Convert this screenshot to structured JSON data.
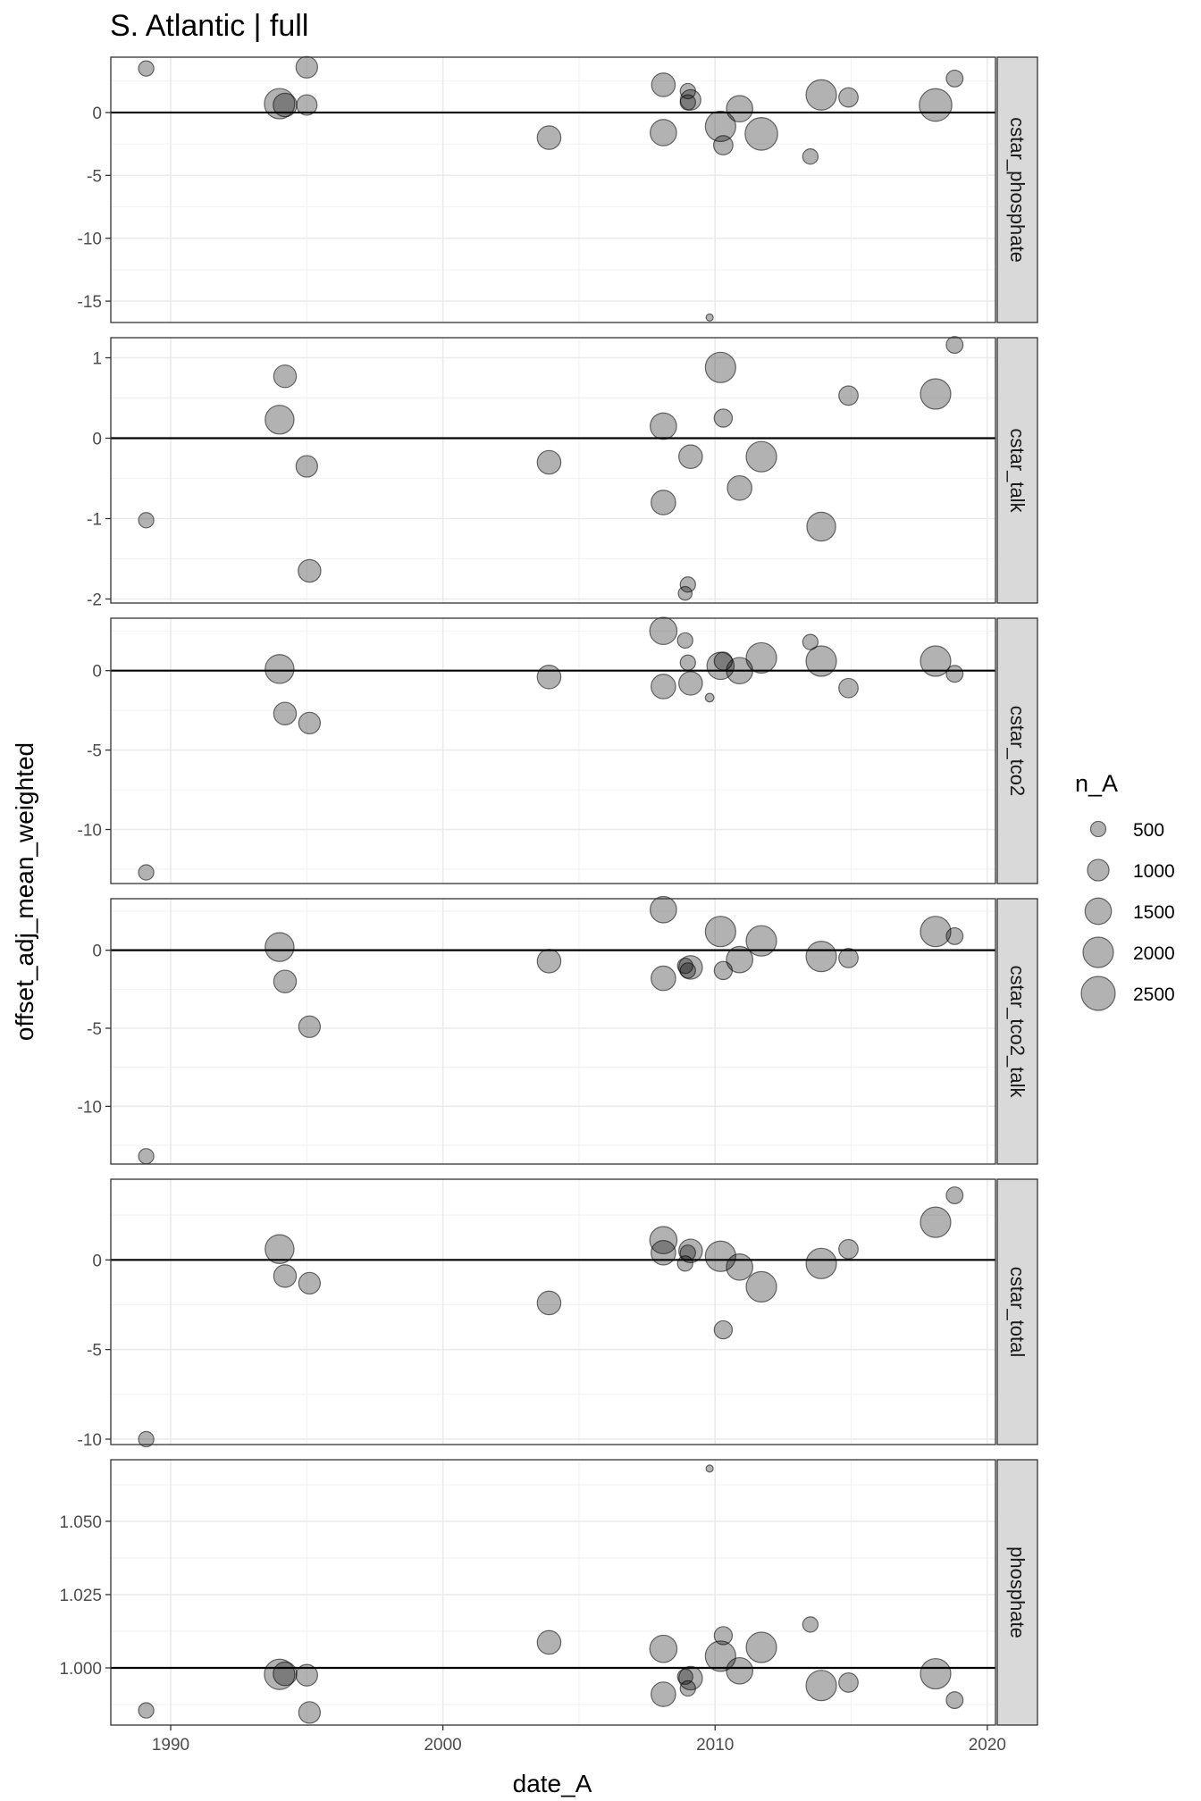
{
  "chart_data": {
    "type": "scatter",
    "title": "S. Atlantic | full",
    "xlabel": "date_A",
    "ylabel": "offset_adj_mean_weighted",
    "xlim": [
      1987.8,
      2020.3
    ],
    "x_ticks": [
      1990,
      2000,
      2010,
      2020
    ],
    "x_tick_labels": [
      "1990",
      "2000",
      "2010",
      "2020"
    ],
    "grid": true,
    "reference_line_y": "0 for offsets, 1 for phosphate ratio",
    "point_color": "#000000",
    "point_opacity": 0.3,
    "size_legend": {
      "title": "n_A",
      "placement": "right",
      "values": [
        500,
        1000,
        1500,
        2000,
        2500
      ],
      "labels": [
        "500",
        "1000",
        "1500",
        "2000",
        "2500"
      ]
    },
    "panels": [
      {
        "name": "cstar_phosphate",
        "ylim": [
          -16.7,
          4.4
        ],
        "ref": 0,
        "y_ticks": [
          0,
          -5,
          -10,
          -15
        ],
        "y_tick_labels": [
          "0",
          "-5",
          "-10",
          "-15"
        ],
        "points": [
          {
            "x": 1989.1,
            "y": 3.5,
            "n": 500
          },
          {
            "x": 1994.0,
            "y": 0.7,
            "n": 2000
          },
          {
            "x": 1994.2,
            "y": 0.6,
            "n": 1200
          },
          {
            "x": 1995.0,
            "y": 3.6,
            "n": 1000
          },
          {
            "x": 1995.0,
            "y": 0.6,
            "n": 900
          },
          {
            "x": 2003.9,
            "y": -2.0,
            "n": 1200
          },
          {
            "x": 2008.1,
            "y": 2.2,
            "n": 1200
          },
          {
            "x": 2008.1,
            "y": -1.6,
            "n": 1500
          },
          {
            "x": 2009.0,
            "y": 1.7,
            "n": 500
          },
          {
            "x": 2009.1,
            "y": 1.0,
            "n": 900
          },
          {
            "x": 2009.0,
            "y": 0.8,
            "n": 500
          },
          {
            "x": 2009.8,
            "y": -16.3,
            "n": 100
          },
          {
            "x": 2010.2,
            "y": -1.1,
            "n": 2000
          },
          {
            "x": 2010.3,
            "y": -2.6,
            "n": 800
          },
          {
            "x": 2010.9,
            "y": 0.3,
            "n": 1500
          },
          {
            "x": 2011.7,
            "y": -1.7,
            "n": 2300
          },
          {
            "x": 2013.5,
            "y": -3.5,
            "n": 500
          },
          {
            "x": 2013.9,
            "y": 1.4,
            "n": 2000
          },
          {
            "x": 2014.9,
            "y": 1.2,
            "n": 800
          },
          {
            "x": 2018.1,
            "y": 0.6,
            "n": 2300
          },
          {
            "x": 2018.8,
            "y": 2.7,
            "n": 600
          }
        ]
      },
      {
        "name": "cstar_talk",
        "ylim": [
          -2.05,
          1.25
        ],
        "ref": 0,
        "y_ticks": [
          1,
          0,
          -1,
          -2
        ],
        "y_tick_labels": [
          "1",
          "0",
          "-1",
          "-2"
        ],
        "points": [
          {
            "x": 1989.1,
            "y": -1.02,
            "n": 500
          },
          {
            "x": 1994.0,
            "y": 0.23,
            "n": 1800
          },
          {
            "x": 1994.2,
            "y": 0.77,
            "n": 1100
          },
          {
            "x": 1995.0,
            "y": -0.35,
            "n": 1000
          },
          {
            "x": 1995.1,
            "y": -1.65,
            "n": 1100
          },
          {
            "x": 2003.9,
            "y": -0.3,
            "n": 1200
          },
          {
            "x": 2008.1,
            "y": 0.15,
            "n": 1500
          },
          {
            "x": 2008.1,
            "y": -0.8,
            "n": 1300
          },
          {
            "x": 2009.0,
            "y": -1.82,
            "n": 500
          },
          {
            "x": 2008.9,
            "y": -1.93,
            "n": 400
          },
          {
            "x": 2009.1,
            "y": -0.23,
            "n": 1200
          },
          {
            "x": 2010.2,
            "y": 0.88,
            "n": 2000
          },
          {
            "x": 2010.3,
            "y": 0.25,
            "n": 700
          },
          {
            "x": 2010.9,
            "y": -0.62,
            "n": 1300
          },
          {
            "x": 2011.7,
            "y": -0.23,
            "n": 2000
          },
          {
            "x": 2013.9,
            "y": -1.1,
            "n": 1800
          },
          {
            "x": 2014.9,
            "y": 0.53,
            "n": 800
          },
          {
            "x": 2018.1,
            "y": 0.55,
            "n": 2000
          },
          {
            "x": 2018.8,
            "y": 1.16,
            "n": 600
          }
        ]
      },
      {
        "name": "cstar_tco2",
        "ylim": [
          -13.4,
          3.3
        ],
        "ref": 0,
        "y_ticks": [
          0,
          -5,
          -10
        ],
        "y_tick_labels": [
          "0",
          "-5",
          "-10"
        ],
        "points": [
          {
            "x": 1989.1,
            "y": -12.7,
            "n": 500
          },
          {
            "x": 1994.0,
            "y": 0.1,
            "n": 1800
          },
          {
            "x": 1994.2,
            "y": -2.7,
            "n": 1100
          },
          {
            "x": 1995.1,
            "y": -3.3,
            "n": 1000
          },
          {
            "x": 2003.9,
            "y": -0.4,
            "n": 1200
          },
          {
            "x": 2008.1,
            "y": 2.5,
            "n": 1600
          },
          {
            "x": 2008.1,
            "y": -1.0,
            "n": 1300
          },
          {
            "x": 2008.9,
            "y": 1.9,
            "n": 500
          },
          {
            "x": 2009.0,
            "y": 0.5,
            "n": 500
          },
          {
            "x": 2009.1,
            "y": -0.8,
            "n": 1200
          },
          {
            "x": 2009.8,
            "y": -1.7,
            "n": 150
          },
          {
            "x": 2010.2,
            "y": 0.3,
            "n": 1600
          },
          {
            "x": 2010.3,
            "y": 0.6,
            "n": 700
          },
          {
            "x": 2010.9,
            "y": 0.0,
            "n": 1500
          },
          {
            "x": 2011.7,
            "y": 0.8,
            "n": 2000
          },
          {
            "x": 2013.5,
            "y": 1.8,
            "n": 500
          },
          {
            "x": 2013.9,
            "y": 0.6,
            "n": 2000
          },
          {
            "x": 2014.9,
            "y": -1.1,
            "n": 800
          },
          {
            "x": 2018.1,
            "y": 0.6,
            "n": 2000
          },
          {
            "x": 2018.8,
            "y": -0.2,
            "n": 600
          }
        ]
      },
      {
        "name": "cstar_tco2_talk",
        "ylim": [
          -13.7,
          3.3
        ],
        "ref": 0,
        "y_ticks": [
          0,
          -5,
          -10
        ],
        "y_tick_labels": [
          "0",
          "-5",
          "-10"
        ],
        "points": [
          {
            "x": 1989.1,
            "y": -13.2,
            "n": 500
          },
          {
            "x": 1994.0,
            "y": 0.2,
            "n": 1800
          },
          {
            "x": 1994.2,
            "y": -2.0,
            "n": 1100
          },
          {
            "x": 1995.1,
            "y": -4.9,
            "n": 1000
          },
          {
            "x": 2003.9,
            "y": -0.7,
            "n": 1200
          },
          {
            "x": 2008.1,
            "y": 2.6,
            "n": 1500
          },
          {
            "x": 2008.1,
            "y": -1.8,
            "n": 1300
          },
          {
            "x": 2008.9,
            "y": -1.0,
            "n": 500
          },
          {
            "x": 2009.0,
            "y": -1.3,
            "n": 500
          },
          {
            "x": 2009.1,
            "y": -1.1,
            "n": 1200
          },
          {
            "x": 2010.2,
            "y": 1.2,
            "n": 2000
          },
          {
            "x": 2010.3,
            "y": -1.3,
            "n": 700
          },
          {
            "x": 2010.9,
            "y": -0.6,
            "n": 1500
          },
          {
            "x": 2011.7,
            "y": 0.6,
            "n": 2000
          },
          {
            "x": 2013.9,
            "y": -0.4,
            "n": 2000
          },
          {
            "x": 2014.9,
            "y": -0.5,
            "n": 800
          },
          {
            "x": 2018.1,
            "y": 1.2,
            "n": 2000
          },
          {
            "x": 2018.8,
            "y": 0.9,
            "n": 600
          }
        ]
      },
      {
        "name": "cstar_total",
        "ylim": [
          -10.3,
          4.5
        ],
        "ref": 0,
        "y_ticks": [
          0,
          -5,
          -10
        ],
        "y_tick_labels": [
          "0",
          "-5",
          "-10"
        ],
        "points": [
          {
            "x": 1989.1,
            "y": -10.0,
            "n": 500
          },
          {
            "x": 1994.0,
            "y": 0.6,
            "n": 1800
          },
          {
            "x": 1994.2,
            "y": -0.9,
            "n": 1100
          },
          {
            "x": 1995.1,
            "y": -1.3,
            "n": 1000
          },
          {
            "x": 2003.9,
            "y": -2.4,
            "n": 1200
          },
          {
            "x": 2008.1,
            "y": 1.1,
            "n": 1600
          },
          {
            "x": 2008.1,
            "y": 0.4,
            "n": 1300
          },
          {
            "x": 2008.9,
            "y": -0.2,
            "n": 500
          },
          {
            "x": 2009.0,
            "y": 0.4,
            "n": 500
          },
          {
            "x": 2009.1,
            "y": 0.5,
            "n": 1200
          },
          {
            "x": 2010.2,
            "y": 0.2,
            "n": 2000
          },
          {
            "x": 2010.3,
            "y": -3.9,
            "n": 700
          },
          {
            "x": 2010.9,
            "y": -0.4,
            "n": 1500
          },
          {
            "x": 2011.7,
            "y": -1.5,
            "n": 2000
          },
          {
            "x": 2013.9,
            "y": -0.2,
            "n": 2000
          },
          {
            "x": 2014.9,
            "y": 0.6,
            "n": 800
          },
          {
            "x": 2018.1,
            "y": 2.1,
            "n": 2000
          },
          {
            "x": 2018.8,
            "y": 3.6,
            "n": 600
          }
        ]
      },
      {
        "name": "phosphate",
        "ylim": [
          0.9805,
          1.071
        ],
        "ref": 1,
        "y_ticks": [
          1.05,
          1.025,
          1.0
        ],
        "y_tick_labels": [
          "1.050",
          "1.025",
          "1.000"
        ],
        "points": [
          {
            "x": 1989.1,
            "y": 0.9855,
            "n": 500
          },
          {
            "x": 1994.0,
            "y": 0.9978,
            "n": 2000
          },
          {
            "x": 1994.2,
            "y": 0.998,
            "n": 1200
          },
          {
            "x": 1995.0,
            "y": 0.9975,
            "n": 1000
          },
          {
            "x": 1995.1,
            "y": 0.9848,
            "n": 1000
          },
          {
            "x": 2003.9,
            "y": 1.0087,
            "n": 1200
          },
          {
            "x": 2008.1,
            "y": 1.0065,
            "n": 1600
          },
          {
            "x": 2008.1,
            "y": 0.991,
            "n": 1300
          },
          {
            "x": 2008.9,
            "y": 0.997,
            "n": 500
          },
          {
            "x": 2009.0,
            "y": 0.993,
            "n": 500
          },
          {
            "x": 2009.1,
            "y": 0.9965,
            "n": 1200
          },
          {
            "x": 2009.8,
            "y": 1.068,
            "n": 100
          },
          {
            "x": 2010.2,
            "y": 1.004,
            "n": 2000
          },
          {
            "x": 2010.3,
            "y": 1.011,
            "n": 700
          },
          {
            "x": 2010.9,
            "y": 0.999,
            "n": 1500
          },
          {
            "x": 2011.7,
            "y": 1.007,
            "n": 2000
          },
          {
            "x": 2013.5,
            "y": 1.0148,
            "n": 500
          },
          {
            "x": 2013.9,
            "y": 0.994,
            "n": 2000
          },
          {
            "x": 2014.9,
            "y": 0.995,
            "n": 800
          },
          {
            "x": 2018.1,
            "y": 0.998,
            "n": 2000
          },
          {
            "x": 2018.8,
            "y": 0.989,
            "n": 600
          }
        ]
      }
    ]
  }
}
